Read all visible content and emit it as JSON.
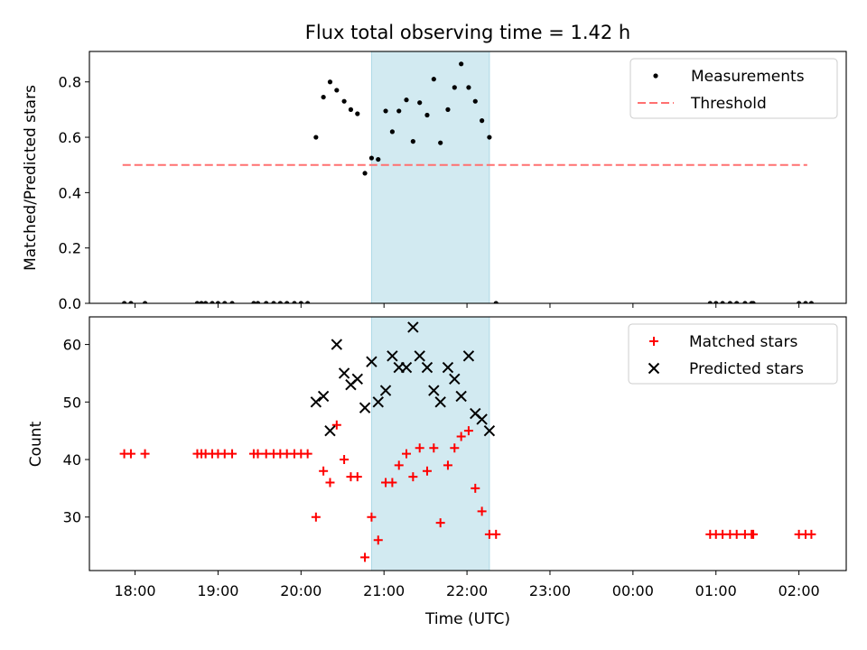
{
  "chart_data": [
    {
      "type": "scatter",
      "title": "Flux total observing time = 1.42 h",
      "xlabel": "",
      "ylabel": "Matched/Predicted stars",
      "xlim": [
        17.45,
        26.57
      ],
      "ylim": [
        0,
        0.91
      ],
      "yticks": [
        0.0,
        0.2,
        0.4,
        0.6,
        0.8
      ],
      "ytick_labels": [
        "0.0",
        "0.2",
        "0.4",
        "0.6",
        "0.8"
      ],
      "shaded_span": {
        "x0": 20.85,
        "x1": 22.27,
        "color": "#add8e6"
      },
      "legend": {
        "loc": "upper right",
        "entries": [
          "Measurements",
          "Threshold"
        ]
      },
      "series": [
        {
          "name": "Measurements",
          "marker": "dot",
          "color": "#000000",
          "x": [
            17.87,
            17.95,
            18.12,
            18.75,
            18.8,
            18.85,
            18.93,
            19.0,
            19.08,
            19.17,
            19.43,
            19.48,
            19.58,
            19.67,
            19.75,
            19.83,
            19.92,
            20.0,
            20.08,
            20.18,
            20.27,
            20.35,
            20.43,
            20.52,
            20.6,
            20.68,
            20.77,
            20.85,
            20.93,
            21.02,
            21.1,
            21.18,
            21.27,
            21.35,
            21.43,
            21.52,
            21.6,
            21.68,
            21.77,
            21.85,
            21.93,
            22.02,
            22.1,
            22.18,
            22.27,
            22.35,
            24.93,
            25.0,
            25.08,
            25.17,
            25.25,
            25.35,
            25.43,
            25.45,
            26.0,
            26.08,
            26.15
          ],
          "y": [
            0,
            0,
            0,
            0,
            0,
            0,
            0,
            0,
            0,
            0,
            0,
            0,
            0,
            0,
            0,
            0,
            0,
            0,
            0,
            0.6,
            0.745,
            0.8,
            0.77,
            0.73,
            0.7,
            0.685,
            0.47,
            0.525,
            0.52,
            0.695,
            0.62,
            0.695,
            0.735,
            0.585,
            0.725,
            0.68,
            0.81,
            0.58,
            0.7,
            0.78,
            0.865,
            0.78,
            0.73,
            0.66,
            0.6,
            0,
            0,
            0,
            0,
            0,
            0,
            0,
            0,
            0,
            0,
            0,
            0
          ]
        },
        {
          "name": "Threshold",
          "style": "dashed-line",
          "color": "#ff7070",
          "x": [
            17.85,
            26.1
          ],
          "y": [
            0.5,
            0.5
          ]
        }
      ]
    },
    {
      "type": "scatter",
      "title": "",
      "xlabel": "Time (UTC)",
      "ylabel": "Count",
      "xlim": [
        17.45,
        26.57
      ],
      "ylim": [
        20.7,
        64.8
      ],
      "yticks": [
        30,
        40,
        50,
        60
      ],
      "ytick_labels": [
        "30",
        "40",
        "50",
        "60"
      ],
      "xticks": [
        18,
        19,
        20,
        21,
        22,
        23,
        24,
        25,
        26
      ],
      "xtick_labels": [
        "18:00",
        "19:00",
        "20:00",
        "21:00",
        "22:00",
        "23:00",
        "00:00",
        "01:00",
        "02:00"
      ],
      "shaded_span": {
        "x0": 20.85,
        "x1": 22.27,
        "color": "#add8e6"
      },
      "legend": {
        "loc": "upper right",
        "entries": [
          "Matched stars",
          "Predicted stars"
        ]
      },
      "series": [
        {
          "name": "Matched stars",
          "marker": "plus",
          "color": "#ff0000",
          "x": [
            17.87,
            17.95,
            18.12,
            18.75,
            18.8,
            18.85,
            18.93,
            19.0,
            19.08,
            19.17,
            19.43,
            19.48,
            19.58,
            19.67,
            19.75,
            19.83,
            19.92,
            20.0,
            20.08,
            20.18,
            20.27,
            20.35,
            20.43,
            20.52,
            20.6,
            20.68,
            20.77,
            20.85,
            20.93,
            21.02,
            21.1,
            21.18,
            21.27,
            21.35,
            21.43,
            21.52,
            21.6,
            21.68,
            21.77,
            21.85,
            21.93,
            22.02,
            22.1,
            22.18,
            22.27,
            22.35,
            24.93,
            25.0,
            25.08,
            25.17,
            25.25,
            25.35,
            25.43,
            25.45,
            26.0,
            26.08,
            26.15
          ],
          "y": [
            41,
            41,
            41,
            41,
            41,
            41,
            41,
            41,
            41,
            41,
            41,
            41,
            41,
            41,
            41,
            41,
            41,
            41,
            41,
            30,
            38,
            36,
            46,
            40,
            37,
            37,
            23,
            30,
            26,
            36,
            36,
            39,
            41,
            37,
            42,
            38,
            42,
            29,
            39,
            42,
            44,
            45,
            35,
            31,
            27,
            27,
            27,
            27,
            27,
            27,
            27,
            27,
            27,
            27,
            27,
            27,
            27
          ]
        },
        {
          "name": "Predicted stars",
          "marker": "x",
          "color": "#000000",
          "x": [
            20.18,
            20.27,
            20.35,
            20.43,
            20.52,
            20.6,
            20.68,
            20.77,
            20.85,
            20.93,
            21.02,
            21.1,
            21.18,
            21.27,
            21.35,
            21.43,
            21.52,
            21.6,
            21.68,
            21.77,
            21.85,
            21.93,
            22.02,
            22.1,
            22.18,
            22.27
          ],
          "y": [
            50,
            51,
            45,
            60,
            55,
            53,
            54,
            49,
            57,
            50,
            52,
            58,
            56,
            56,
            63,
            58,
            56,
            52,
            50,
            56,
            54,
            51,
            58,
            48,
            47,
            45
          ]
        }
      ]
    }
  ]
}
